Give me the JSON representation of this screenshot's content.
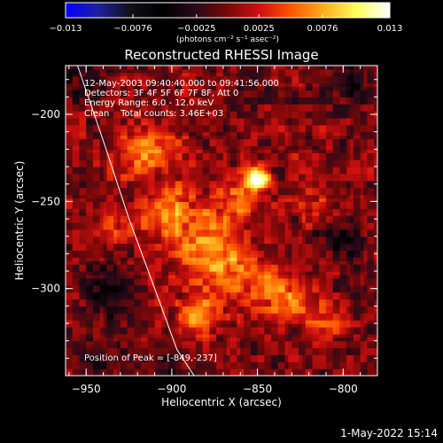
{
  "colorbar": {
    "ticks": [
      "−0.013",
      "−0.0076",
      "−0.0025",
      "0.0025",
      "0.0076",
      "0.013"
    ],
    "tick_values": [
      -0.013,
      -0.0076,
      -0.0025,
      0.0025,
      0.0076,
      0.013
    ],
    "range": [
      -0.013,
      0.013
    ],
    "units": "(photons cm⁻² s⁻¹ asec⁻²)",
    "colors": [
      "#0000ff",
      "#2020a0",
      "#101018",
      "#000000",
      "#2a0a1a",
      "#7a0808",
      "#d01010",
      "#ff5a00",
      "#ffb020",
      "#ffff60",
      "#ffffff"
    ]
  },
  "annotations": {
    "time": "12-May-2003 09:40:40.000 to 09:41:56.000",
    "detectors": "Detectors: 3F 4F 5F 6F 7F 8F, Att 0",
    "energy": "Energy Range: 6.0 - 12.0 keV",
    "clean": "Clean    Total counts: 3.46E+03",
    "peak": "Position of Peak = [-849,-237]"
  },
  "footer": {
    "date": "1-May-2022 15:14"
  },
  "chart_data": {
    "type": "heatmap",
    "title": "Reconstructed RHESSI Image",
    "xlabel": "Heliocentric X (arcsec)",
    "ylabel": "Heliocentric Y (arcsec)",
    "xlim": [
      -962,
      -780
    ],
    "ylim": [
      -350,
      -172
    ],
    "xticks": [
      -950,
      -900,
      -850,
      -800
    ],
    "xtick_labels": [
      "−950",
      "−900",
      "−850",
      "−800"
    ],
    "yticks": [
      -200,
      -250,
      -300
    ],
    "ytick_labels": [
      "−200",
      "−250",
      "−300"
    ],
    "grid": false,
    "peak": {
      "x": -849,
      "y": -237,
      "value": 0.013
    },
    "limb_curve": {
      "x": [
        -955,
        -940,
        -925,
        -910,
        -897,
        -887
      ],
      "y": [
        -172,
        -215,
        -260,
        -300,
        -335,
        -350
      ]
    },
    "features": [
      {
        "x": -849,
        "y": -237,
        "sigma": 4.5,
        "value": 0.013
      },
      {
        "x": -862,
        "y": -250,
        "sigma": 10,
        "value": 0.0055
      },
      {
        "x": -915,
        "y": -220,
        "sigma": 12,
        "value": 0.0055
      },
      {
        "x": -900,
        "y": -255,
        "sigma": 11,
        "value": 0.0065
      },
      {
        "x": -880,
        "y": -275,
        "sigma": 12,
        "value": 0.006
      },
      {
        "x": -860,
        "y": -290,
        "sigma": 12,
        "value": 0.0055
      },
      {
        "x": -835,
        "y": -305,
        "sigma": 11,
        "value": 0.0055
      },
      {
        "x": -885,
        "y": -315,
        "sigma": 9,
        "value": 0.006
      },
      {
        "x": -930,
        "y": -265,
        "sigma": 9,
        "value": 0.004
      },
      {
        "x": -818,
        "y": -245,
        "sigma": 10,
        "value": 0.003
      },
      {
        "x": -810,
        "y": -320,
        "sigma": 9,
        "value": 0.003
      },
      {
        "x": -940,
        "y": -300,
        "sigma": 10,
        "value": -0.004
      },
      {
        "x": -952,
        "y": -180,
        "sigma": 9,
        "value": -0.0035
      },
      {
        "x": -795,
        "y": -180,
        "sigma": 10,
        "value": -0.003
      },
      {
        "x": -800,
        "y": -270,
        "sigma": 9,
        "value": -0.003
      },
      {
        "x": -945,
        "y": -340,
        "sigma": 8,
        "value": -0.0035
      },
      {
        "x": -900,
        "y": -345,
        "sigma": 8,
        "value": -0.0025
      }
    ]
  }
}
